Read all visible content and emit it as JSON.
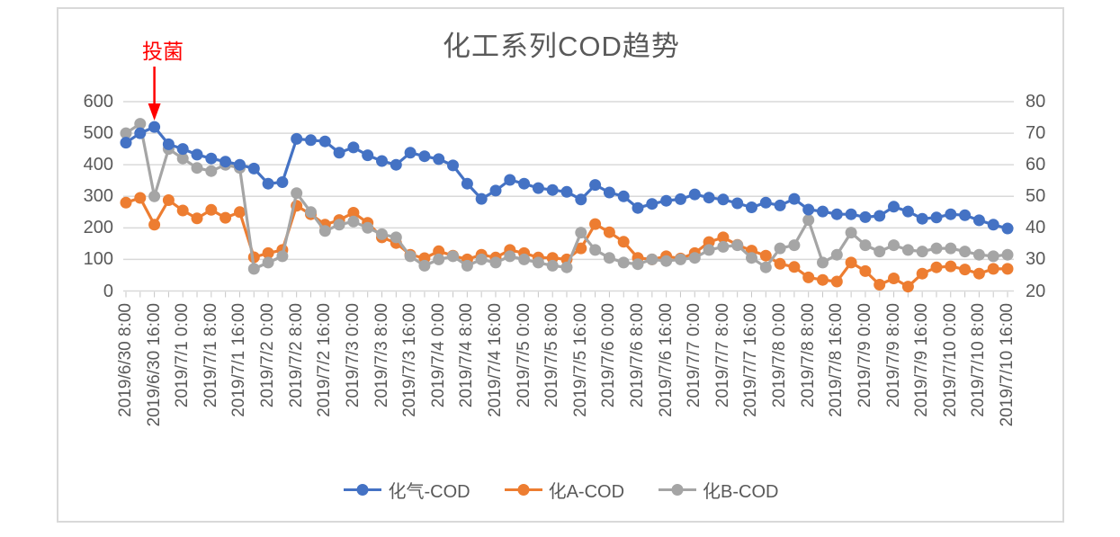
{
  "chart_data": {
    "type": "line",
    "title": "化工系列COD趋势",
    "legend_position": "bottom",
    "grid": true,
    "left_axis": {
      "min": 0,
      "max": 600,
      "ticks": [
        0,
        100,
        200,
        300,
        400,
        500,
        600
      ]
    },
    "right_axis": {
      "min": 20,
      "max": 80,
      "ticks": [
        20,
        30,
        40,
        50,
        60,
        70,
        80
      ]
    },
    "x_labels_shown": [
      "2019/6/30 8:00",
      "2019/6/30 16:00",
      "2019/7/1 0:00",
      "2019/7/1 8:00",
      "2019/7/1 16:00",
      "2019/7/2 0:00",
      "2019/7/2 8:00",
      "2019/7/2 16:00",
      "2019/7/3 0:00",
      "2019/7/3 8:00",
      "2019/7/3 16:00",
      "2019/7/4 0:00",
      "2019/7/4 8:00",
      "2019/7/4 16:00",
      "2019/7/5 0:00",
      "2019/7/5 8:00",
      "2019/7/5 16:00",
      "2019/7/6 0:00",
      "2019/7/6 8:00",
      "2019/7/6 16:00",
      "2019/7/7 0:00",
      "2019/7/7 8:00",
      "2019/7/7 16:00",
      "2019/7/8 0:00",
      "2019/7/8 8:00",
      "2019/7/8 16:00",
      "2019/7/9 0:00",
      "2019/7/9 8:00",
      "2019/7/9 16:00",
      "2019/7/10 0:00",
      "2019/7/10 8:00",
      "2019/7/10 16:00"
    ],
    "categories": [
      "2019/6/30 8:00",
      "2019/6/30 12:00",
      "2019/6/30 16:00",
      "2019/6/30 20:00",
      "2019/7/1 0:00",
      "2019/7/1 4:00",
      "2019/7/1 8:00",
      "2019/7/1 12:00",
      "2019/7/1 16:00",
      "2019/7/1 20:00",
      "2019/7/2 0:00",
      "2019/7/2 4:00",
      "2019/7/2 8:00",
      "2019/7/2 12:00",
      "2019/7/2 16:00",
      "2019/7/2 20:00",
      "2019/7/3 0:00",
      "2019/7/3 4:00",
      "2019/7/3 8:00",
      "2019/7/3 12:00",
      "2019/7/3 16:00",
      "2019/7/3 20:00",
      "2019/7/4 0:00",
      "2019/7/4 4:00",
      "2019/7/4 8:00",
      "2019/7/4 12:00",
      "2019/7/4 16:00",
      "2019/7/4 20:00",
      "2019/7/5 0:00",
      "2019/7/5 4:00",
      "2019/7/5 8:00",
      "2019/7/5 12:00",
      "2019/7/5 16:00",
      "2019/7/5 20:00",
      "2019/7/6 0:00",
      "2019/7/6 4:00",
      "2019/7/6 8:00",
      "2019/7/6 12:00",
      "2019/7/6 16:00",
      "2019/7/6 20:00",
      "2019/7/7 0:00",
      "2019/7/7 4:00",
      "2019/7/7 8:00",
      "2019/7/7 12:00",
      "2019/7/7 16:00",
      "2019/7/7 20:00",
      "2019/7/8 0:00",
      "2019/7/8 4:00",
      "2019/7/8 8:00",
      "2019/7/8 12:00",
      "2019/7/8 16:00",
      "2019/7/8 20:00",
      "2019/7/9 0:00",
      "2019/7/9 4:00",
      "2019/7/9 8:00",
      "2019/7/9 12:00",
      "2019/7/9 16:00",
      "2019/7/9 20:00",
      "2019/7/10 0:00",
      "2019/7/10 4:00",
      "2019/7/10 8:00",
      "2019/7/10 12:00",
      "2019/7/10 16:00"
    ],
    "series": [
      {
        "name": "化气-COD",
        "axis": "left",
        "color": "#4472C4",
        "values": [
          470,
          500,
          520,
          465,
          450,
          432,
          420,
          410,
          400,
          388,
          340,
          345,
          482,
          478,
          474,
          438,
          455,
          430,
          412,
          400,
          438,
          427,
          418,
          398,
          340,
          292,
          318,
          352,
          340,
          326,
          320,
          314,
          290,
          336,
          312,
          300,
          263,
          276,
          286,
          291,
          306,
          296,
          290,
          278,
          265,
          280,
          271,
          292,
          258,
          252,
          243,
          243,
          234,
          238,
          267,
          252,
          229,
          233,
          243,
          240,
          224,
          210,
          198
        ]
      },
      {
        "name": "化A-COD",
        "axis": "left",
        "color": "#ED7D31",
        "values": [
          280,
          295,
          210,
          288,
          255,
          230,
          257,
          232,
          250,
          107,
          120,
          130,
          270,
          243,
          210,
          225,
          248,
          216,
          170,
          152,
          115,
          104,
          126,
          112,
          100,
          115,
          106,
          130,
          120,
          106,
          105,
          100,
          135,
          212,
          186,
          156,
          105,
          100,
          110,
          103,
          120,
          155,
          170,
          146,
          128,
          112,
          86,
          76,
          43,
          35,
          30,
          90,
          63,
          20,
          40,
          14,
          55,
          75,
          78,
          68,
          55,
          70,
          70
        ]
      },
      {
        "name": "化B-COD",
        "axis": "right",
        "color": "#A5A5A5",
        "values": [
          70,
          73,
          50,
          65,
          62,
          59,
          58,
          60,
          59,
          27,
          29,
          31,
          51,
          45,
          39,
          41,
          42,
          40,
          38,
          37,
          31,
          28,
          30,
          31,
          28,
          30,
          29,
          31,
          30,
          29,
          28,
          27.5,
          38.5,
          33,
          30.5,
          29,
          28.5,
          30,
          29.5,
          30,
          30.5,
          33,
          34,
          34.5,
          30.5,
          27.5,
          33.5,
          34.5,
          42.5,
          29,
          31.5,
          38.5,
          34.5,
          32.5,
          34.5,
          33,
          32.5,
          33.5,
          33.5,
          32.5,
          31.5,
          31,
          31.5
        ]
      }
    ],
    "annotation": {
      "text": "投菌",
      "color": "#ff0000",
      "category": "2019/6/30 16:00"
    },
    "gridline_color": "#d9d9d9",
    "tick_color": "#c6c6c6",
    "text_color": "#595959"
  }
}
